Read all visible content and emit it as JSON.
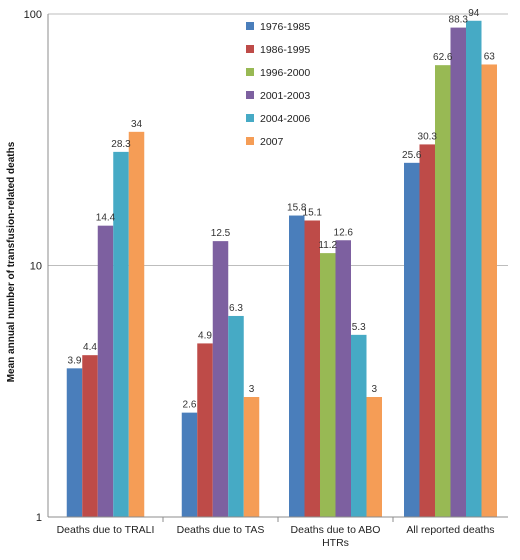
{
  "chart_data": {
    "type": "bar",
    "title": "",
    "xlabel": "",
    "ylabel": "Mean annual number of transfusion-related deaths",
    "yscale": "log",
    "ylim": [
      1,
      100
    ],
    "y_ticks": [
      "1",
      "10",
      "100"
    ],
    "grid": true,
    "legend_position": "top-center",
    "categories": [
      [
        "Deaths due to TRALI"
      ],
      [
        "Deaths due to TAS"
      ],
      [
        "Deaths due to ABO",
        "HTRs"
      ],
      [
        "All reported deaths"
      ]
    ],
    "series": [
      {
        "name": "1976-1985",
        "color": "#4a7ebb",
        "values": [
          3.9,
          2.6,
          15.8,
          25.6
        ],
        "labels": [
          "3.9",
          "2.6",
          "15.8",
          "25.6"
        ]
      },
      {
        "name": "1986-1995",
        "color": "#be4b48",
        "values": [
          4.4,
          4.9,
          15.1,
          30.3
        ],
        "labels": [
          "4.4",
          "4.9",
          "15.1",
          "30.3"
        ]
      },
      {
        "name": "1996-2000",
        "color": "#98b954",
        "values": [
          null,
          null,
          11.2,
          62.6
        ],
        "labels": [
          "",
          "",
          "11.2",
          "62.6"
        ]
      },
      {
        "name": "2001-2003",
        "color": "#7d60a0",
        "values": [
          14.4,
          12.5,
          12.6,
          88.3
        ],
        "labels": [
          "14.4",
          "12.5",
          "12.6",
          "88.3"
        ]
      },
      {
        "name": "2004-2006",
        "color": "#46aac5",
        "values": [
          28.3,
          6.3,
          5.3,
          94
        ],
        "labels": [
          "28.3",
          "6.3",
          "5.3",
          "94"
        ]
      },
      {
        "name": "2007",
        "color": "#f59d56",
        "values": [
          34,
          3,
          3,
          63
        ],
        "labels": [
          "34",
          "3",
          "3",
          "63"
        ]
      }
    ]
  }
}
